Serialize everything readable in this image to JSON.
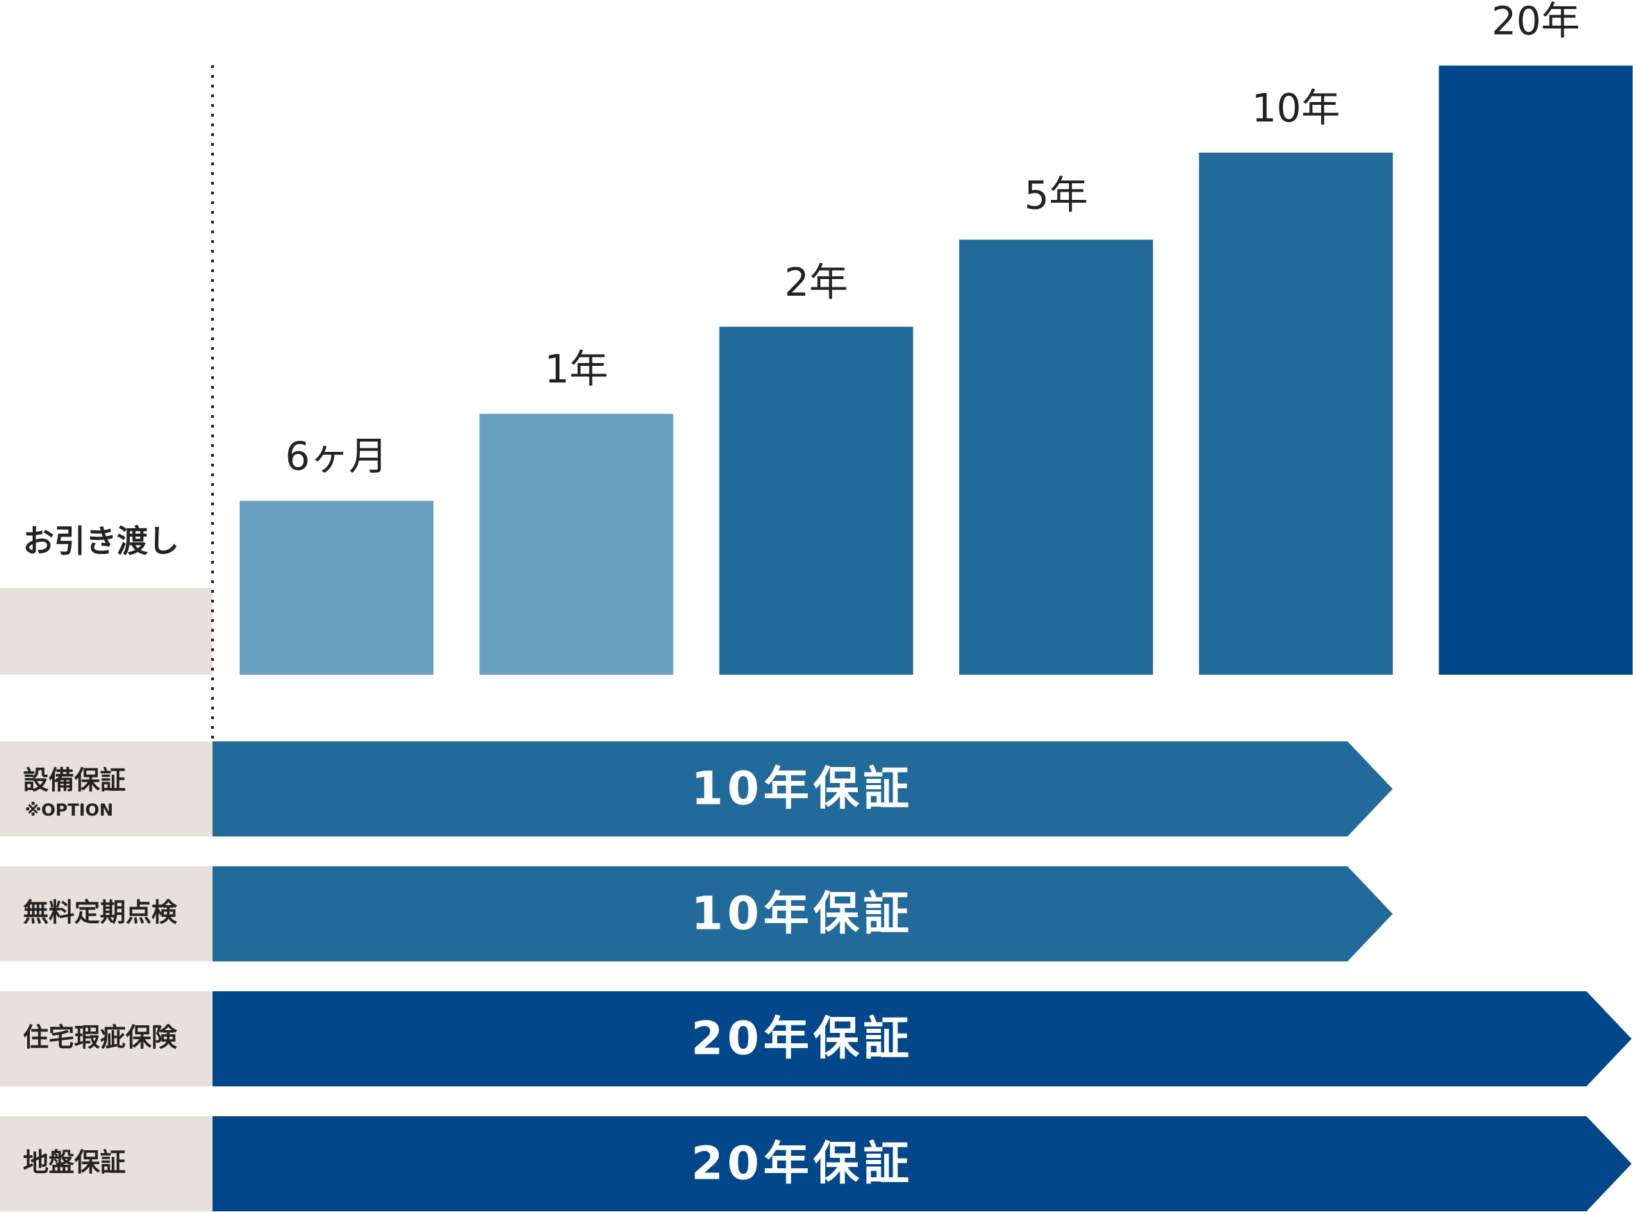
{
  "handover": {
    "label": "お引き渡し",
    "color": "#e7e1dc"
  },
  "periods": [
    {
      "label": "6ヶ月",
      "color": "#68a0c1"
    },
    {
      "label": "1年",
      "color": "#68a0c1"
    },
    {
      "label": "2年",
      "color": "#226a9a"
    },
    {
      "label": "5年",
      "color": "#226a9a"
    },
    {
      "label": "10年",
      "color": "#226a9a"
    },
    {
      "label": "20年",
      "color": "#02478a"
    }
  ],
  "rows": [
    {
      "name": "設備保証",
      "note": "※OPTION",
      "label": "10年保証",
      "color": "#226a9a"
    },
    {
      "name": "無料定期点検",
      "label": "10年保証",
      "color": "#226a9a"
    },
    {
      "name": "住宅瑕疵保険",
      "label": "20年保証",
      "color": "#02478a"
    },
    {
      "name": "地盤保証",
      "label": "20年保証",
      "color": "#02478a"
    }
  ]
}
